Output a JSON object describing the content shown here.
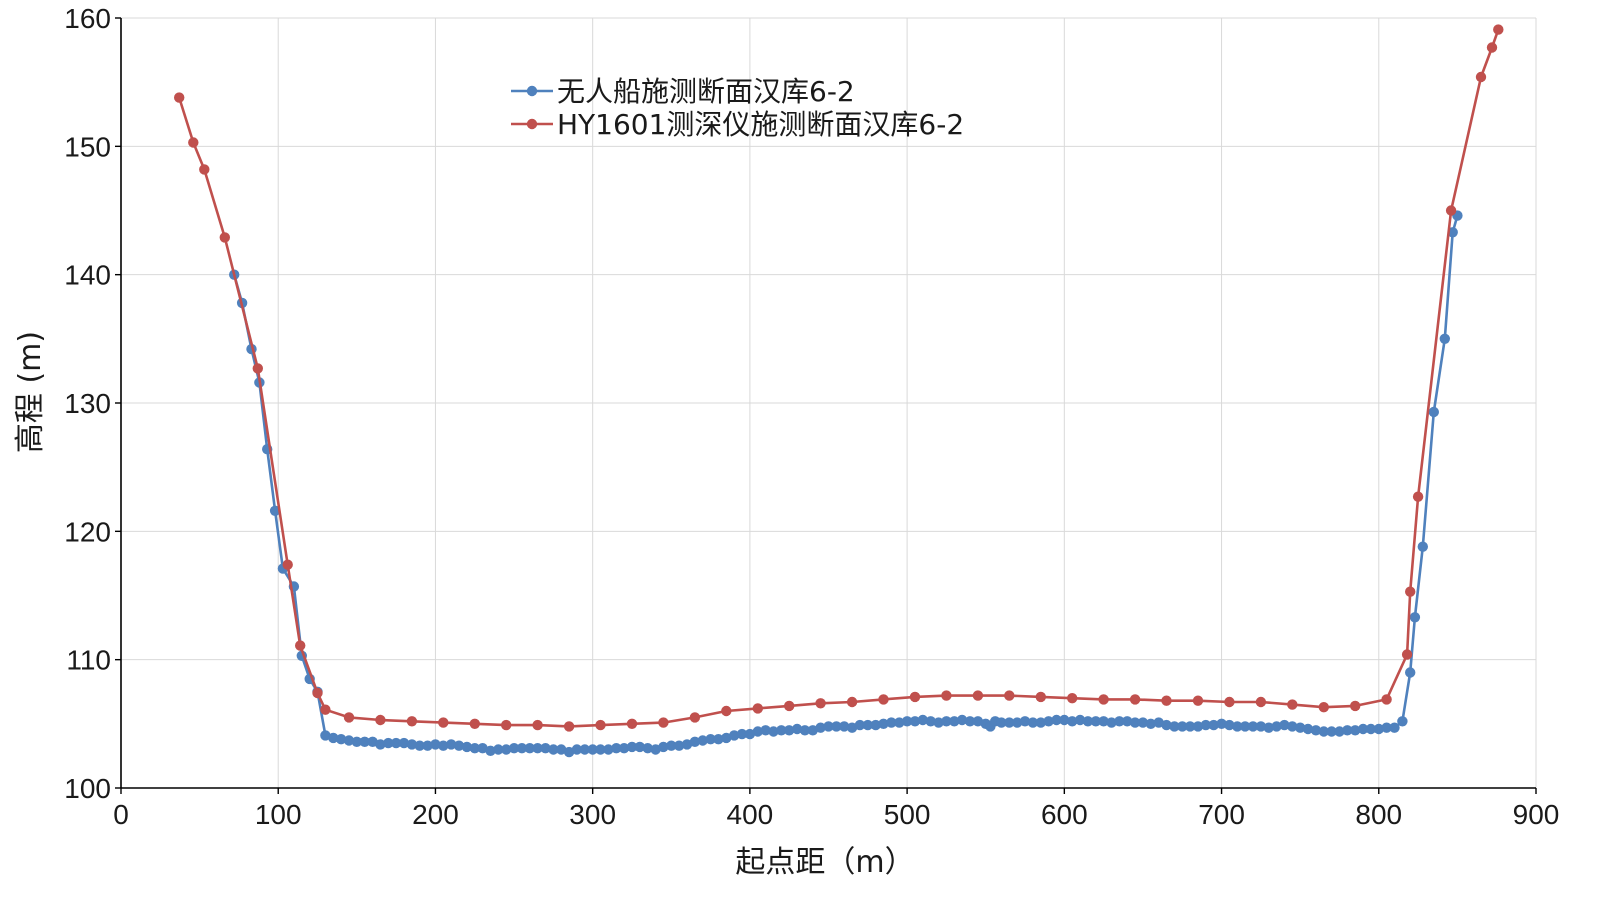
{
  "chart_data": {
    "type": "line",
    "title": "",
    "xlabel": "起点距（m）",
    "ylabel": "高程 (m)",
    "xlim": [
      0,
      900
    ],
    "ylim": [
      100,
      160
    ],
    "xticks": [
      0,
      100,
      200,
      300,
      400,
      500,
      600,
      700,
      800,
      900
    ],
    "yticks": [
      100,
      110,
      120,
      130,
      140,
      150,
      160
    ],
    "grid": true,
    "legend_position": "top-center",
    "series": [
      {
        "name": "无人船施测断面汉库6-2",
        "color": "#4f81bd",
        "points": [
          [
            72,
            140.0
          ],
          [
            77,
            137.8
          ],
          [
            83,
            134.2
          ],
          [
            88,
            131.6
          ],
          [
            93,
            126.4
          ],
          [
            98,
            121.6
          ],
          [
            103,
            117.1
          ],
          [
            110,
            115.7
          ],
          [
            115,
            110.3
          ],
          [
            120,
            108.5
          ],
          [
            125,
            107.5
          ],
          [
            130,
            104.1
          ],
          [
            135,
            103.9
          ],
          [
            140,
            103.8
          ],
          [
            145,
            103.7
          ],
          [
            150,
            103.6
          ],
          [
            155,
            103.6
          ],
          [
            160,
            103.6
          ],
          [
            165,
            103.4
          ],
          [
            170,
            103.5
          ],
          [
            175,
            103.5
          ],
          [
            180,
            103.5
          ],
          [
            185,
            103.4
          ],
          [
            190,
            103.3
          ],
          [
            195,
            103.3
          ],
          [
            200,
            103.4
          ],
          [
            205,
            103.3
          ],
          [
            210,
            103.4
          ],
          [
            215,
            103.3
          ],
          [
            220,
            103.2
          ],
          [
            225,
            103.1
          ],
          [
            230,
            103.1
          ],
          [
            235,
            102.9
          ],
          [
            240,
            103.0
          ],
          [
            245,
            103.0
          ],
          [
            250,
            103.1
          ],
          [
            255,
            103.1
          ],
          [
            260,
            103.1
          ],
          [
            265,
            103.1
          ],
          [
            270,
            103.1
          ],
          [
            275,
            103.0
          ],
          [
            280,
            103.0
          ],
          [
            285,
            102.8
          ],
          [
            290,
            103.0
          ],
          [
            295,
            103.0
          ],
          [
            300,
            103.0
          ],
          [
            305,
            103.0
          ],
          [
            310,
            103.0
          ],
          [
            315,
            103.1
          ],
          [
            320,
            103.1
          ],
          [
            325,
            103.2
          ],
          [
            330,
            103.2
          ],
          [
            335,
            103.1
          ],
          [
            340,
            103.0
          ],
          [
            345,
            103.2
          ],
          [
            350,
            103.3
          ],
          [
            355,
            103.3
          ],
          [
            360,
            103.4
          ],
          [
            365,
            103.6
          ],
          [
            370,
            103.7
          ],
          [
            375,
            103.8
          ],
          [
            380,
            103.8
          ],
          [
            385,
            103.9
          ],
          [
            390,
            104.1
          ],
          [
            395,
            104.2
          ],
          [
            400,
            104.2
          ],
          [
            405,
            104.4
          ],
          [
            410,
            104.5
          ],
          [
            415,
            104.4
          ],
          [
            420,
            104.5
          ],
          [
            425,
            104.5
          ],
          [
            430,
            104.6
          ],
          [
            435,
            104.5
          ],
          [
            440,
            104.5
          ],
          [
            445,
            104.7
          ],
          [
            450,
            104.8
          ],
          [
            455,
            104.8
          ],
          [
            460,
            104.8
          ],
          [
            465,
            104.7
          ],
          [
            470,
            104.9
          ],
          [
            475,
            104.9
          ],
          [
            480,
            104.9
          ],
          [
            485,
            105.0
          ],
          [
            490,
            105.1
          ],
          [
            495,
            105.1
          ],
          [
            500,
            105.2
          ],
          [
            505,
            105.2
          ],
          [
            510,
            105.3
          ],
          [
            515,
            105.2
          ],
          [
            520,
            105.1
          ],
          [
            525,
            105.2
          ],
          [
            530,
            105.2
          ],
          [
            535,
            105.3
          ],
          [
            540,
            105.2
          ],
          [
            545,
            105.2
          ],
          [
            550,
            105.0
          ],
          [
            553,
            104.8
          ],
          [
            556,
            105.2
          ],
          [
            560,
            105.1
          ],
          [
            565,
            105.1
          ],
          [
            570,
            105.1
          ],
          [
            575,
            105.2
          ],
          [
            580,
            105.1
          ],
          [
            585,
            105.1
          ],
          [
            590,
            105.2
          ],
          [
            595,
            105.3
          ],
          [
            600,
            105.3
          ],
          [
            605,
            105.2
          ],
          [
            610,
            105.3
          ],
          [
            615,
            105.2
          ],
          [
            620,
            105.2
          ],
          [
            625,
            105.2
          ],
          [
            630,
            105.1
          ],
          [
            635,
            105.2
          ],
          [
            640,
            105.2
          ],
          [
            645,
            105.1
          ],
          [
            650,
            105.1
          ],
          [
            655,
            105.0
          ],
          [
            660,
            105.1
          ],
          [
            665,
            104.9
          ],
          [
            670,
            104.8
          ],
          [
            675,
            104.8
          ],
          [
            680,
            104.8
          ],
          [
            685,
            104.8
          ],
          [
            690,
            104.9
          ],
          [
            695,
            104.9
          ],
          [
            700,
            105.0
          ],
          [
            705,
            104.9
          ],
          [
            710,
            104.8
          ],
          [
            715,
            104.8
          ],
          [
            720,
            104.8
          ],
          [
            725,
            104.8
          ],
          [
            730,
            104.7
          ],
          [
            735,
            104.8
          ],
          [
            740,
            104.9
          ],
          [
            745,
            104.8
          ],
          [
            750,
            104.7
          ],
          [
            755,
            104.6
          ],
          [
            760,
            104.5
          ],
          [
            765,
            104.4
          ],
          [
            770,
            104.4
          ],
          [
            775,
            104.4
          ],
          [
            780,
            104.5
          ],
          [
            785,
            104.5
          ],
          [
            790,
            104.6
          ],
          [
            795,
            104.6
          ],
          [
            800,
            104.6
          ],
          [
            805,
            104.7
          ],
          [
            810,
            104.7
          ],
          [
            815,
            105.2
          ],
          [
            820,
            109.0
          ],
          [
            823,
            113.3
          ],
          [
            828,
            118.8
          ],
          [
            835,
            129.3
          ],
          [
            842,
            135.0
          ],
          [
            847,
            143.3
          ],
          [
            850,
            144.6
          ]
        ]
      },
      {
        "name": "HY1601测深仪施测断面汉库6-2",
        "color": "#c0504d",
        "points": [
          [
            37,
            153.8
          ],
          [
            46,
            150.3
          ],
          [
            53,
            148.2
          ],
          [
            66,
            142.9
          ],
          [
            87,
            132.7
          ],
          [
            106,
            117.4
          ],
          [
            114,
            111.1
          ],
          [
            125,
            107.4
          ],
          [
            130,
            106.1
          ],
          [
            145,
            105.5
          ],
          [
            165,
            105.3
          ],
          [
            185,
            105.2
          ],
          [
            205,
            105.1
          ],
          [
            225,
            105.0
          ],
          [
            245,
            104.9
          ],
          [
            265,
            104.9
          ],
          [
            285,
            104.8
          ],
          [
            305,
            104.9
          ],
          [
            325,
            105.0
          ],
          [
            345,
            105.1
          ],
          [
            365,
            105.5
          ],
          [
            385,
            106.0
          ],
          [
            405,
            106.2
          ],
          [
            425,
            106.4
          ],
          [
            445,
            106.6
          ],
          [
            465,
            106.7
          ],
          [
            485,
            106.9
          ],
          [
            505,
            107.1
          ],
          [
            525,
            107.2
          ],
          [
            545,
            107.2
          ],
          [
            565,
            107.2
          ],
          [
            585,
            107.1
          ],
          [
            605,
            107.0
          ],
          [
            625,
            106.9
          ],
          [
            645,
            106.9
          ],
          [
            665,
            106.8
          ],
          [
            685,
            106.8
          ],
          [
            705,
            106.7
          ],
          [
            725,
            106.7
          ],
          [
            745,
            106.5
          ],
          [
            765,
            106.3
          ],
          [
            785,
            106.4
          ],
          [
            805,
            106.9
          ],
          [
            818,
            110.4
          ],
          [
            820,
            115.3
          ],
          [
            825,
            122.7
          ],
          [
            846,
            145.0
          ],
          [
            865,
            155.4
          ],
          [
            872,
            157.7
          ],
          [
            876,
            159.1
          ]
        ]
      }
    ]
  }
}
